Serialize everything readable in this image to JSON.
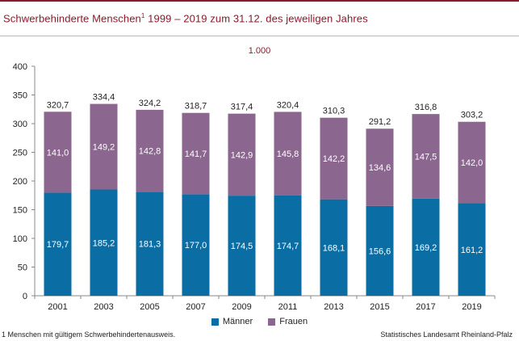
{
  "title": "Schwerbehinderte Menschen",
  "title_sup": "1",
  "title_rest": " 1999 – 2019 zum 31.12. des jeweiligen Jahres",
  "unit": "1.000",
  "footnote": "1 Menschen mit gültigem Schwerbehindertenausweis.",
  "source": "Statistisches Landesamt Rheinland-Pfalz",
  "colors": {
    "maenner": "#0a6ea5",
    "frauen": "#8b668f",
    "accent": "#8b1a2b"
  },
  "chart_data": {
    "type": "bar",
    "stacked": true,
    "categories": [
      "2001",
      "2003",
      "2005",
      "2007",
      "2009",
      "2011",
      "2013",
      "2015",
      "2017",
      "2019"
    ],
    "series": [
      {
        "name": "Männer",
        "values": [
          179.7,
          185.2,
          181.3,
          177.0,
          174.5,
          174.7,
          168.1,
          156.6,
          169.2,
          161.2
        ],
        "labels": [
          "179,7",
          "185,2",
          "181,3",
          "177,0",
          "174,5",
          "174,7",
          "168,1",
          "156,6",
          "169,2",
          "161,2"
        ]
      },
      {
        "name": "Frauen",
        "values": [
          141.0,
          149.2,
          142.8,
          141.7,
          142.9,
          145.8,
          142.2,
          134.6,
          147.5,
          142.0
        ],
        "labels": [
          "141,0",
          "149,2",
          "142,8",
          "141,7",
          "142,9",
          "145,8",
          "142,2",
          "134,6",
          "147,5",
          "142,0"
        ]
      }
    ],
    "totals": [
      320.7,
      334.4,
      324.2,
      318.7,
      317.4,
      320.4,
      310.3,
      291.2,
      316.8,
      303.2
    ],
    "total_labels": [
      "320,7",
      "334,4",
      "324,2",
      "318,7",
      "317,4",
      "320,4",
      "310,3",
      "291,2",
      "316,8",
      "303,2"
    ],
    "ylim": [
      0,
      400
    ],
    "yticks": [
      0,
      50,
      100,
      150,
      200,
      250,
      300,
      350,
      400
    ],
    "grid": false,
    "legend": "bottom-center"
  }
}
